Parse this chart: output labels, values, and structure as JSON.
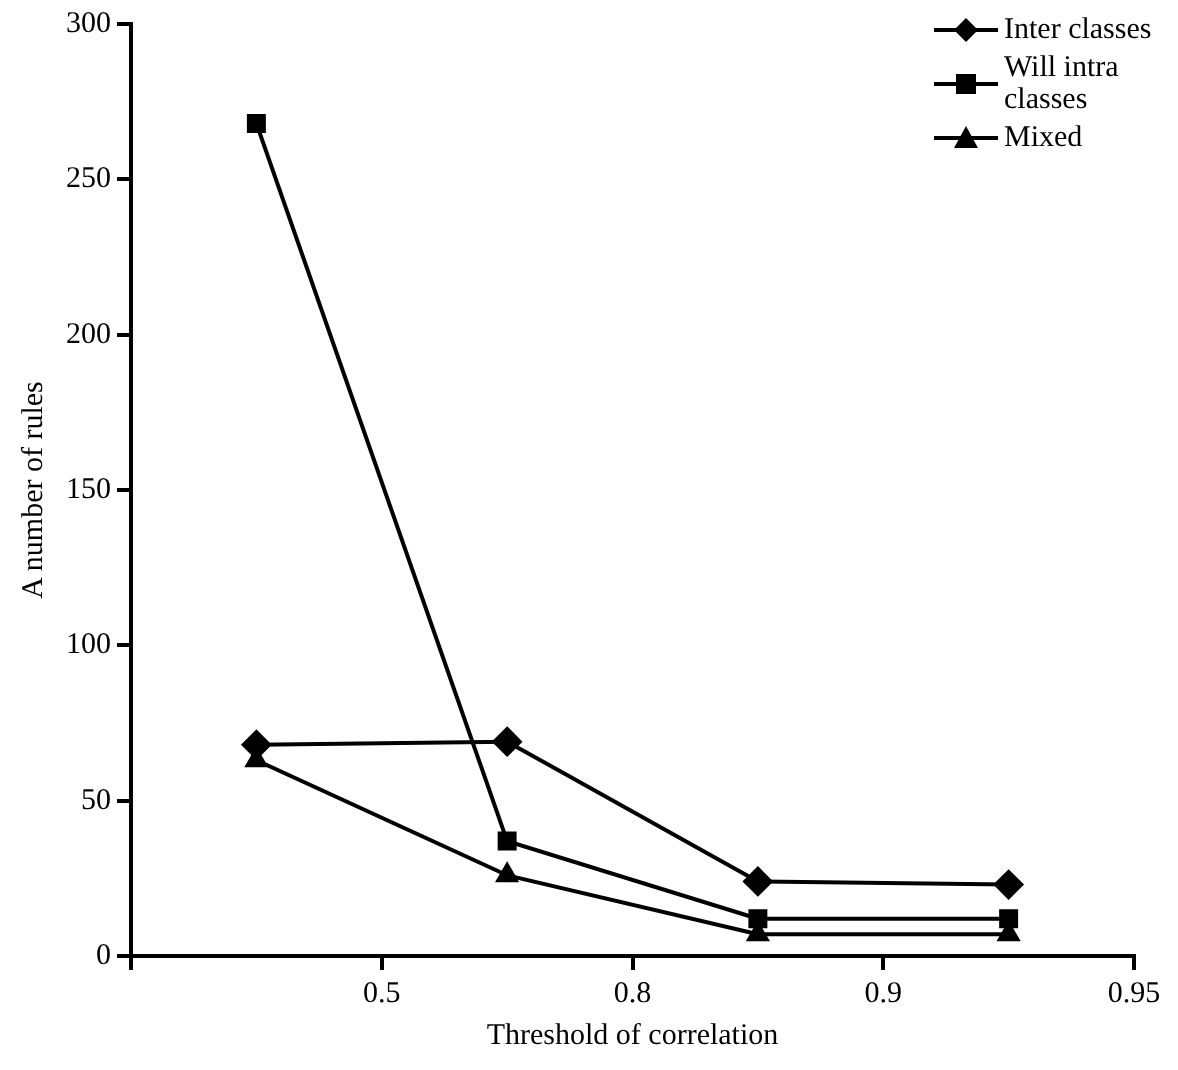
{
  "chart_data": {
    "type": "line",
    "xlabel": "Threshold of correlation",
    "ylabel": "A number of rules",
    "categories": [
      null,
      null,
      "0.5",
      null,
      "0.8",
      null,
      "0.9",
      null,
      "0.95"
    ],
    "series": [
      {
        "name": "Inter classes",
        "color": "#000000",
        "marker": "diamond",
        "values": [
          null,
          68,
          null,
          69,
          null,
          24,
          null,
          23,
          null
        ]
      },
      {
        "name": "Will intra classes",
        "color": "#000000",
        "marker": "square",
        "values": [
          null,
          268,
          null,
          37,
          null,
          12,
          null,
          12,
          null
        ]
      },
      {
        "name": "Mixed",
        "color": "#000000",
        "marker": "triangle",
        "values": [
          null,
          63,
          null,
          26,
          null,
          7,
          null,
          7,
          null
        ]
      }
    ],
    "ylim": [
      0,
      300
    ],
    "yticks": [
      0,
      50,
      100,
      150,
      200,
      250,
      300
    ],
    "grid": false,
    "legend": "top right",
    "line_style": "solid"
  }
}
